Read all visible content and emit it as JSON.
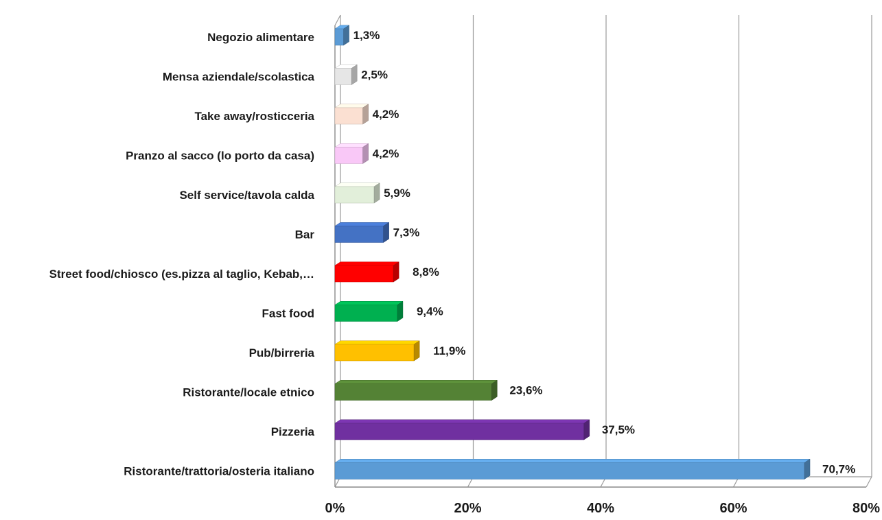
{
  "chart_data": {
    "type": "bar",
    "orientation": "horizontal",
    "three_d": true,
    "categories": [
      "Negozio alimentare",
      "Mensa aziendale/scolastica",
      "Take away/rosticceria",
      "Pranzo al sacco (lo porto da casa)",
      "Self service/tavola calda",
      "Bar",
      "Street food/chiosco (es.pizza al taglio, Kebab,…",
      "Fast food",
      "Pub/birreria",
      "Ristorante/locale etnico",
      "Pizzeria",
      "Ristorante/trattoria/osteria italiano"
    ],
    "values": [
      1.3,
      2.5,
      4.2,
      4.2,
      5.9,
      7.3,
      8.8,
      9.4,
      11.9,
      23.6,
      37.5,
      70.7
    ],
    "value_labels": [
      "1,3%",
      "2,5%",
      "4,2%",
      "4,2%",
      "5,9%",
      "7,3%",
      "8,8%",
      "9,4%",
      "11,9%",
      "23,6%",
      "37,5%",
      "70,7%"
    ],
    "colors": [
      "#5b9bd5",
      "#e6e6e6",
      "#fbe0d2",
      "#f9c8f7",
      "#e2efda",
      "#4472c4",
      "#ff0000",
      "#00b050",
      "#ffc000",
      "#548235",
      "#7030a0",
      "#5b9bd5"
    ],
    "x_ticks": [
      "0%",
      "20%",
      "40%",
      "60%",
      "80%"
    ],
    "xlim": [
      0,
      80
    ],
    "grid": true,
    "legend": "none",
    "title": "",
    "xlabel": "",
    "ylabel": ""
  }
}
